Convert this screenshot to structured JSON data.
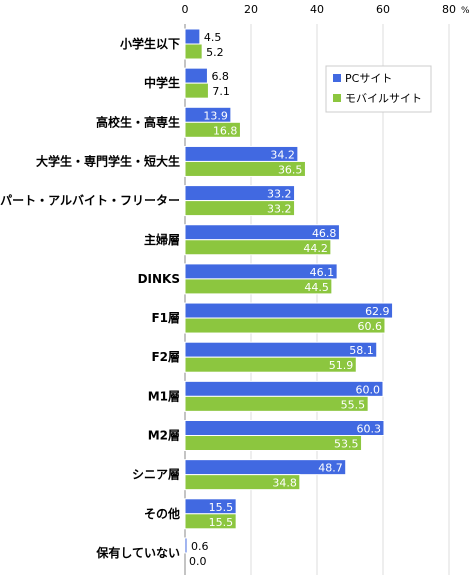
{
  "chart_data": {
    "type": "bar",
    "orientation": "horizontal",
    "unit": "%",
    "xlim": [
      0,
      80
    ],
    "xticks": [
      "0",
      "20",
      "40",
      "60",
      "80"
    ],
    "grid": true,
    "legend_position": "top-right",
    "categories": [
      "小学生以下",
      "中学生",
      "高校生・高専生",
      "大学生・専門学生・短大生",
      "パート・アルバイト・フリーター",
      "主婦層",
      "DINKS",
      "F1層",
      "F2層",
      "M1層",
      "M2層",
      "シニア層",
      "その他",
      "保有していない"
    ],
    "series": [
      {
        "name": "PCサイト",
        "color": "#4169e1",
        "values": [
          4.5,
          6.8,
          13.9,
          34.2,
          33.2,
          46.8,
          46.1,
          62.9,
          58.1,
          60.0,
          60.3,
          48.7,
          15.5,
          0.6
        ],
        "labels": [
          "4.5",
          "6.8",
          "13.9",
          "34.2",
          "33.2",
          "46.8",
          "46.1",
          "62.9",
          "58.1",
          "60.0",
          "60.3",
          "48.7",
          "15.5",
          "0.6"
        ]
      },
      {
        "name": "モバイルサイト",
        "color": "#8cc63f",
        "values": [
          5.2,
          7.1,
          16.8,
          36.5,
          33.2,
          44.2,
          44.5,
          60.6,
          51.9,
          55.5,
          53.5,
          34.8,
          15.5,
          0.0
        ],
        "labels": [
          "5.2",
          "7.1",
          "16.8",
          "36.5",
          "33.2",
          "44.2",
          "44.5",
          "60.6",
          "51.9",
          "55.5",
          "53.5",
          "34.8",
          "15.5",
          "0.0"
        ]
      }
    ]
  }
}
